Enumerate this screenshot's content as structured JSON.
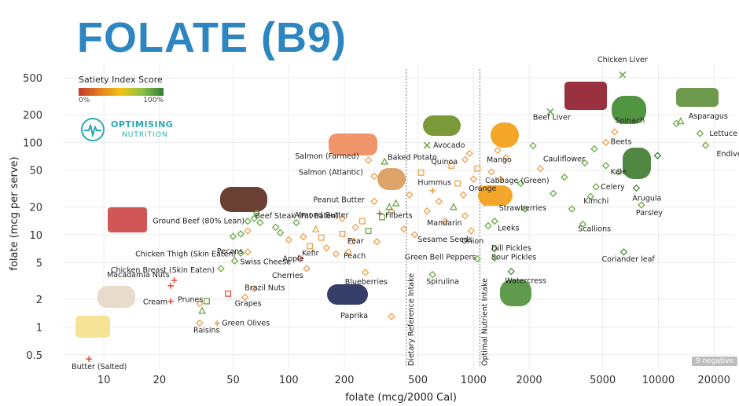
{
  "title": "FOLATE (B9)",
  "legend": {
    "title": "Satiety Index Score",
    "min_label": "0%",
    "max_label": "100%"
  },
  "logo": {
    "name": "OPTIMISING",
    "sub": "NUTRITION",
    "icon": "heartbeat-icon"
  },
  "badge": "9 negative",
  "colors": {
    "title": "#2e86c1",
    "low": "#e5533d",
    "mid": "#f0a04b",
    "high": "#6aaa44",
    "accent": "#2aa9b5"
  },
  "chart_data": {
    "type": "scatter",
    "xscale": "log",
    "yscale": "log",
    "xlabel": "folate (mcg/2000 Cal)",
    "ylabel": "folate (mcg per serve)",
    "xlim": [
      6,
      26000
    ],
    "ylim": [
      0.35,
      700
    ],
    "xticks": [
      10,
      20,
      50,
      100,
      200,
      500,
      1000,
      2000,
      5000,
      10000,
      20000
    ],
    "yticks": [
      0.5,
      1,
      2,
      5,
      10,
      20,
      50,
      100,
      200,
      500
    ],
    "reference_lines": [
      {
        "label": "Dietary Reference Intake",
        "x": 400
      },
      {
        "label": "Optimal Nutrient Intake",
        "x": 1000
      }
    ],
    "labeled_points": [
      {
        "label": "Chicken Liver",
        "x": 6400,
        "y": 540,
        "marker": "x",
        "color": "#6aaa44"
      },
      {
        "label": "Beef Liver",
        "x": 2600,
        "y": 215,
        "marker": "x",
        "color": "#6aaa44"
      },
      {
        "label": "Spinach",
        "x": 12500,
        "y": 160,
        "marker": "diamond",
        "color": "#6aaa44"
      },
      {
        "label": "Asparagus",
        "x": 13200,
        "y": 170,
        "marker": "triangle",
        "color": "#6aaa44"
      },
      {
        "label": "Lettuce",
        "x": 16800,
        "y": 125,
        "marker": "diamond",
        "color": "#6aaa44"
      },
      {
        "label": "Beets",
        "x": 5200,
        "y": 100,
        "marker": "diamond",
        "color": "#f0a04b"
      },
      {
        "label": "Endive",
        "x": 18000,
        "y": 93,
        "marker": "diamond",
        "color": "#6aaa44"
      },
      {
        "label": "Cauliflower",
        "x": 4500,
        "y": 85,
        "marker": "diamond",
        "color": "#6aaa44"
      },
      {
        "label": "Kale",
        "x": 5200,
        "y": 56,
        "marker": "diamond",
        "color": "#6aaa44"
      },
      {
        "label": "Celery",
        "x": 4600,
        "y": 33,
        "marker": "diamond",
        "color": "#6aaa44"
      },
      {
        "label": "Arugula",
        "x": 7600,
        "y": 32,
        "marker": "diamond",
        "color": "#4a8c3a"
      },
      {
        "label": "Kimchi",
        "x": 4300,
        "y": 26,
        "marker": "diamond",
        "color": "#6aaa44"
      },
      {
        "label": "Parsley",
        "x": 8100,
        "y": 21,
        "marker": "diamond",
        "color": "#6aaa44"
      },
      {
        "label": "Scallions",
        "x": 3900,
        "y": 13,
        "marker": "diamond",
        "color": "#6aaa44"
      },
      {
        "label": "Coriander leaf",
        "x": 6500,
        "y": 6.5,
        "marker": "diamond",
        "color": "#4a8c3a"
      },
      {
        "label": "Avocado",
        "x": 560,
        "y": 93,
        "marker": "x",
        "color": "#6aaa44"
      },
      {
        "label": "Mango",
        "x": 1350,
        "y": 82,
        "marker": "diamond",
        "color": "#f0a04b"
      },
      {
        "label": "Cabbage (Green)",
        "x": 1250,
        "y": 48,
        "marker": "diamond",
        "color": "#f0a04b"
      },
      {
        "label": "Quinoa",
        "x": 760,
        "y": 56,
        "marker": "square",
        "color": "#f0a04b"
      },
      {
        "label": "Orange",
        "x": 1000,
        "y": 40,
        "marker": "diamond",
        "color": "#f0a04b"
      },
      {
        "label": "Hummus",
        "x": 820,
        "y": 36,
        "marker": "square",
        "color": "#f0a04b"
      },
      {
        "label": "Strawberries",
        "x": 1400,
        "y": 25,
        "marker": "diamond",
        "color": "#f0a04b"
      },
      {
        "label": "Mandarin",
        "x": 900,
        "y": 16,
        "marker": "diamond",
        "color": "#f0a04b"
      },
      {
        "label": "Leeks",
        "x": 1300,
        "y": 14,
        "marker": "diamond",
        "color": "#6aaa44"
      },
      {
        "label": "Onion",
        "x": 970,
        "y": 11,
        "marker": "diamond",
        "color": "#f0a04b"
      },
      {
        "label": "Sesame Seeds",
        "x": 480,
        "y": 10,
        "marker": "diamond",
        "color": "#f0a04b"
      },
      {
        "label": "Dill Pickles",
        "x": 1300,
        "y": 7,
        "marker": "diamond",
        "color": "#6aaa44"
      },
      {
        "label": "Sour Pickles",
        "x": 1300,
        "y": 5.6,
        "marker": "diamond",
        "color": "#6aaa44"
      },
      {
        "label": "Green Bell Peppers",
        "x": 1050,
        "y": 5.5,
        "marker": "diamond",
        "color": "#6aaa44"
      },
      {
        "label": "Watercress",
        "x": 1600,
        "y": 4,
        "marker": "diamond",
        "color": "#4a8c3a"
      },
      {
        "label": "Spirulina",
        "x": 600,
        "y": 3.7,
        "marker": "diamond",
        "color": "#6aaa44"
      },
      {
        "label": "Baked Potato",
        "x": 330,
        "y": 62,
        "marker": "triangle",
        "color": "#6aaa44"
      },
      {
        "label": "Salmon (Farmed)",
        "x": 270,
        "y": 64,
        "marker": "diamond",
        "color": "#f0a04b"
      },
      {
        "label": "Salmon (Atlantic)",
        "x": 290,
        "y": 43,
        "marker": "diamond",
        "color": "#f0a04b"
      },
      {
        "label": "Peanut Butter",
        "x": 290,
        "y": 23,
        "marker": "diamond",
        "color": "#f0a04b"
      },
      {
        "label": "Filberts",
        "x": 350,
        "y": 20,
        "marker": "triangle",
        "color": "#6aaa44"
      },
      {
        "label": "Almond Butter",
        "x": 195,
        "y": 15,
        "marker": "diamond",
        "color": "#f0a04b"
      },
      {
        "label": "Pear",
        "x": 220,
        "y": 8.5,
        "marker": "square",
        "color": "#f0a04b"
      },
      {
        "label": "Peach",
        "x": 210,
        "y": 6.5,
        "marker": "diamond",
        "color": "#f0a04b"
      },
      {
        "label": "Kefir",
        "x": 130,
        "y": 7.5,
        "marker": "square",
        "color": "#f0a04b"
      },
      {
        "label": "Apple",
        "x": 115,
        "y": 5.5,
        "marker": "diamond",
        "color": "#e5533d"
      },
      {
        "label": "Cherries",
        "x": 125,
        "y": 4.3,
        "marker": "diamond",
        "color": "#f0a04b"
      },
      {
        "label": "Blueberries",
        "x": 260,
        "y": 3.9,
        "marker": "diamond",
        "color": "#f0a04b"
      },
      {
        "label": "Paprika",
        "x": 360,
        "y": 1.3,
        "marker": "diamond",
        "color": "#f0a04b"
      },
      {
        "label": "Beef Steak (Fat Eaten)",
        "x": 67,
        "y": 17,
        "marker": "diamond",
        "color": "#6aaa44"
      },
      {
        "label": "Ground Beef (80% Lean)",
        "x": 60,
        "y": 14,
        "marker": "diamond",
        "color": "#6aaa44"
      },
      {
        "label": "Chicken Thigh (Skin Eaten)",
        "x": 55,
        "y": 6.3,
        "marker": "diamond",
        "color": "#6aaa44"
      },
      {
        "label": "Pecans",
        "x": 60,
        "y": 6.5,
        "marker": "diamond",
        "color": "#f0a04b"
      },
      {
        "label": "Swiss Cheese",
        "x": 51,
        "y": 5.2,
        "marker": "diamond",
        "color": "#6aaa44"
      },
      {
        "label": "Chicken Breast (Skin Eaten)",
        "x": 43,
        "y": 4.3,
        "marker": "diamond",
        "color": "#6aaa44"
      },
      {
        "label": "Macadamia Nuts",
        "x": 24,
        "y": 3.2,
        "marker": "plus",
        "color": "#e5533d"
      },
      {
        "label": "Brazil Nuts",
        "x": 65,
        "y": 2.6,
        "marker": "diamond",
        "color": "#f0a04b"
      },
      {
        "label": "Prunes",
        "x": 33,
        "y": 1.8,
        "marker": "diamond",
        "color": "#f0a04b"
      },
      {
        "label": "Cream",
        "x": 23,
        "y": 1.9,
        "marker": "plus",
        "color": "#e5533d"
      },
      {
        "label": "Grapes",
        "x": 58,
        "y": 2.1,
        "marker": "diamond",
        "color": "#f0a04b"
      },
      {
        "label": "Green Olives",
        "x": 41,
        "y": 1.1,
        "marker": "plus",
        "color": "#f0a04b"
      },
      {
        "label": "Raisins",
        "x": 33,
        "y": 1.1,
        "marker": "diamond",
        "color": "#f0a04b"
      },
      {
        "label": "Butter (Salted)",
        "x": 8.3,
        "y": 0.45,
        "marker": "plus",
        "color": "#e5533d"
      }
    ],
    "unlabeled_points": [
      [
        23,
        2.8,
        "plus",
        "#e5533d"
      ],
      [
        34,
        1.5,
        "triangle",
        "#6aaa44"
      ],
      [
        36,
        1.9,
        "square",
        "#6aaa44"
      ],
      [
        47,
        2.3,
        "square",
        "#e5533d"
      ],
      [
        50,
        9.6,
        "diamond",
        "#6aaa44"
      ],
      [
        55,
        10.2,
        "diamond",
        "#6aaa44"
      ],
      [
        60,
        11,
        "diamond",
        "#f0a04b"
      ],
      [
        65,
        15,
        "diamond",
        "#6aaa44"
      ],
      [
        70,
        13.5,
        "diamond",
        "#6aaa44"
      ],
      [
        85,
        12,
        "diamond",
        "#6aaa44"
      ],
      [
        90,
        10.5,
        "diamond",
        "#6aaa44"
      ],
      [
        100,
        8.8,
        "diamond",
        "#f0a04b"
      ],
      [
        110,
        13.5,
        "diamond",
        "#6aaa44"
      ],
      [
        120,
        9.5,
        "diamond",
        "#f0a04b"
      ],
      [
        140,
        11.5,
        "triangle",
        "#f0a04b"
      ],
      [
        150,
        9.3,
        "square",
        "#f0a04b"
      ],
      [
        160,
        7.2,
        "diamond",
        "#f0a04b"
      ],
      [
        180,
        6.2,
        "diamond",
        "#f0a04b"
      ],
      [
        195,
        10.2,
        "square",
        "#f0a04b"
      ],
      [
        230,
        12,
        "diamond",
        "#f0a04b"
      ],
      [
        250,
        14,
        "square",
        "#f0a04b"
      ],
      [
        270,
        11,
        "square",
        "#6aaa44"
      ],
      [
        300,
        8.4,
        "diamond",
        "#f0a04b"
      ],
      [
        310,
        17,
        "plus",
        "#e5533d"
      ],
      [
        320,
        15.5,
        "square",
        "#6aaa44"
      ],
      [
        360,
        18,
        "diamond",
        "#f0a04b"
      ],
      [
        380,
        22,
        "triangle",
        "#6aaa44"
      ],
      [
        420,
        11.5,
        "diamond",
        "#f0a04b"
      ],
      [
        450,
        27,
        "diamond",
        "#f0a04b"
      ],
      [
        520,
        47,
        "square",
        "#f0a04b"
      ],
      [
        560,
        18,
        "diamond",
        "#f0a04b"
      ],
      [
        600,
        30,
        "plus",
        "#f0a04b"
      ],
      [
        650,
        23,
        "diamond",
        "#f0a04b"
      ],
      [
        700,
        14,
        "diamond",
        "#f0a04b"
      ],
      [
        780,
        20,
        "triangle",
        "#6aaa44"
      ],
      [
        880,
        27,
        "diamond",
        "#f0a04b"
      ],
      [
        900,
        65,
        "diamond",
        "#f0a04b"
      ],
      [
        950,
        76,
        "diamond",
        "#f0a04b"
      ],
      [
        1050,
        52,
        "square",
        "#f0a04b"
      ],
      [
        1100,
        32,
        "diamond",
        "#f0a04b"
      ],
      [
        1150,
        22,
        "diamond",
        "#f0a04b"
      ],
      [
        1200,
        12.5,
        "diamond",
        "#6aaa44"
      ],
      [
        1400,
        40,
        "diamond",
        "#f0a04b"
      ],
      [
        1500,
        68,
        "diamond",
        "#f0a04b"
      ],
      [
        1800,
        36,
        "diamond",
        "#6aaa44"
      ],
      [
        1900,
        19,
        "diamond",
        "#6aaa44"
      ],
      [
        2100,
        92,
        "diamond",
        "#6aaa44"
      ],
      [
        2300,
        52,
        "diamond",
        "#f0a04b"
      ],
      [
        2700,
        28,
        "diamond",
        "#6aaa44"
      ],
      [
        3100,
        42,
        "diamond",
        "#6aaa44"
      ],
      [
        3400,
        19,
        "diamond",
        "#6aaa44"
      ],
      [
        4000,
        60,
        "diamond",
        "#6aaa44"
      ],
      [
        5800,
        130,
        "diamond",
        "#f0a04b"
      ],
      [
        6100,
        48,
        "diamond",
        "#6aaa44"
      ],
      [
        9900,
        72,
        "diamond",
        "#2e7d32"
      ]
    ]
  }
}
